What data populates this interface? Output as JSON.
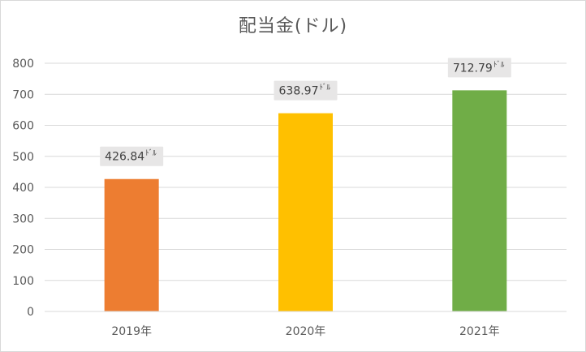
{
  "chart_data": {
    "type": "bar",
    "title": "配当金(ドル)",
    "categories": [
      "2019年",
      "2020年",
      "2021年"
    ],
    "values": [
      426.84,
      638.97,
      712.79
    ],
    "data_labels": [
      "426.84",
      "638.97",
      "712.79"
    ],
    "data_label_unit": "ﾄﾞﾙ",
    "colors": [
      "#ED7D31",
      "#FFC000",
      "#70AD47"
    ],
    "ylim": [
      0,
      800
    ],
    "yticks": [
      0,
      100,
      200,
      300,
      400,
      500,
      600,
      700,
      800
    ],
    "xlabel": "",
    "ylabel": "",
    "grid": true,
    "legend": "none"
  }
}
